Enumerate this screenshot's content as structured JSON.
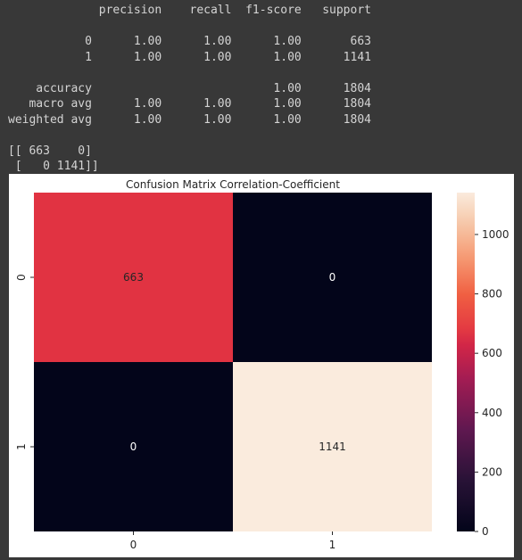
{
  "report": {
    "header": [
      "precision",
      "recall",
      "f1-score",
      "support"
    ],
    "rows": [
      {
        "label": "0",
        "precision": "1.00",
        "recall": "1.00",
        "f1": "1.00",
        "support": "663"
      },
      {
        "label": "1",
        "precision": "1.00",
        "recall": "1.00",
        "f1": "1.00",
        "support": "1141"
      }
    ],
    "summary": [
      {
        "label": "accuracy",
        "precision": "",
        "recall": "",
        "f1": "1.00",
        "support": "1804"
      },
      {
        "label": "macro avg",
        "precision": "1.00",
        "recall": "1.00",
        "f1": "1.00",
        "support": "1804"
      },
      {
        "label": "weighted avg",
        "precision": "1.00",
        "recall": "1.00",
        "f1": "1.00",
        "support": "1804"
      }
    ],
    "matrix_text": [
      "[[ 663    0]",
      " [   0 1141]]"
    ]
  },
  "chart_data": {
    "type": "heatmap",
    "title": "Confusion Matrix Correlation-Coefficient",
    "x_categories": [
      "0",
      "1"
    ],
    "y_categories": [
      "0",
      "1"
    ],
    "values": [
      [
        663,
        0
      ],
      [
        0,
        1141
      ]
    ],
    "cell_labels": [
      [
        "663",
        "0"
      ],
      [
        "0",
        "1141"
      ]
    ],
    "colorbar": {
      "min": 0,
      "max": 1141,
      "ticks": [
        0,
        200,
        400,
        600,
        800,
        1000
      ],
      "tick_labels": [
        "0",
        "200",
        "400",
        "600",
        "800",
        "1000"
      ],
      "colormap": "rocket"
    },
    "colors": {
      "low": "#03051a",
      "mid": "#e13342",
      "high": "#faebdd"
    }
  }
}
